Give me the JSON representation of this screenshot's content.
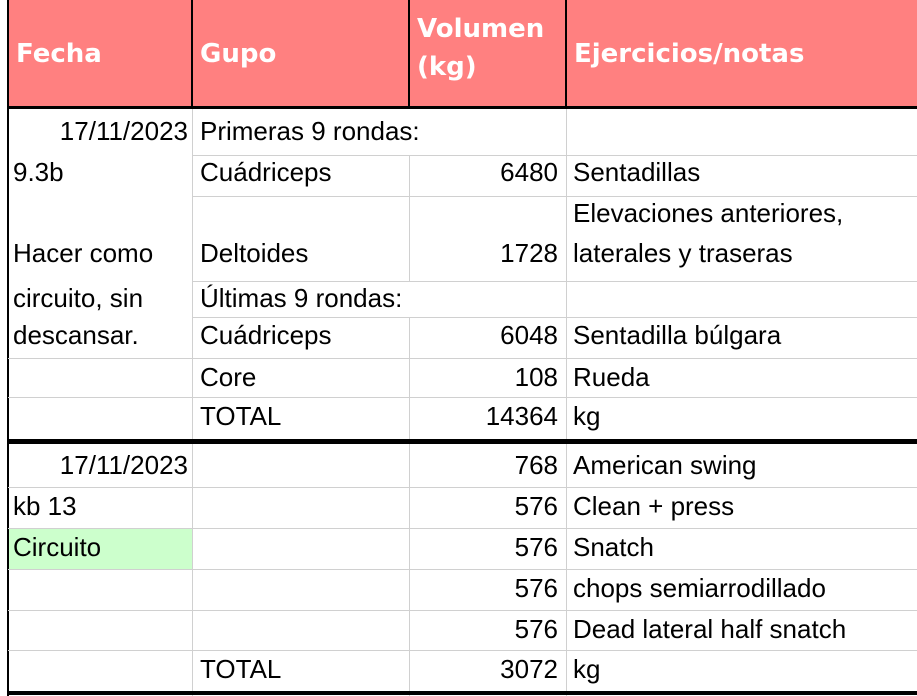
{
  "headers": {
    "fecha": "Fecha",
    "grupo": "Gupo",
    "volumen_line1": "Volumen",
    "volumen_line2": "(kg)",
    "ejercicios": "Ejercicios/notas"
  },
  "block1": {
    "r1": {
      "a": "17/11/2023",
      "b": "Primeras 9 rondas:"
    },
    "r2": {
      "a": "9.3b",
      "b": "Cuádriceps",
      "c": "6480",
      "d": "Sentadillas"
    },
    "r3": {
      "a": "Hacer como",
      "b": "Deltoides",
      "c": "1728",
      "d1": "Elevaciones anteriores,",
      "d2": "laterales y traseras"
    },
    "r4": {
      "a": "circuito, sin",
      "b": "Últimas 9 rondas:"
    },
    "r5": {
      "a": "descansar.",
      "b": "Cuádriceps",
      "c": "6048",
      "d": "Sentadilla búlgara"
    },
    "r6": {
      "b": "Core",
      "c": "108",
      "d": "Rueda"
    },
    "r7": {
      "b": "TOTAL",
      "c": "14364",
      "d": "kg"
    }
  },
  "block2": {
    "r1": {
      "a": "17/11/2023",
      "c": "768",
      "d": "American swing"
    },
    "r2": {
      "a": "kb 13",
      "c": "576",
      "d": "Clean + press"
    },
    "r3": {
      "a": "Circuito",
      "c": "576",
      "d": "Snatch"
    },
    "r4": {
      "c": "576",
      "d": "chops semiarrodillado"
    },
    "r5": {
      "c": "576",
      "d": "Dead lateral half snatch"
    },
    "r6": {
      "b": "TOTAL",
      "c": "3072",
      "d": "kg"
    }
  },
  "colors": {
    "header_bg": "#ff8080",
    "header_text": "#ffffff",
    "highlight_green": "#ccffcc"
  }
}
